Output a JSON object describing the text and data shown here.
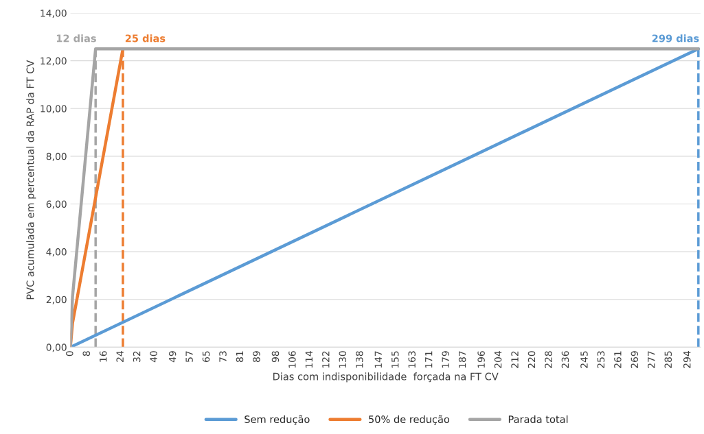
{
  "chart_data": {
    "type": "line",
    "xlabel": "Dias com indisponibilidade  forçada na FT CV",
    "ylabel": "PVC acumulada em percentual da RAP da FT CV",
    "series": [
      {
        "name": "Sem redução",
        "color": "#5b9bd5",
        "x": [
          0,
          299
        ],
        "values": [
          0,
          12.5
        ]
      },
      {
        "name": "50% de redução",
        "color": "#ed7d31",
        "x": [
          0,
          1,
          25
        ],
        "values": [
          0,
          1.0,
          12.5
        ]
      },
      {
        "name": "Parada total",
        "color": "#a5a5a5",
        "x": [
          0,
          1,
          12,
          299
        ],
        "values": [
          0,
          2.1,
          12.5,
          12.5
        ]
      }
    ],
    "xlim": [
      0,
      300
    ],
    "xticks": [
      0,
      8,
      16,
      24,
      32,
      40,
      49,
      57,
      65,
      73,
      81,
      89,
      98,
      106,
      114,
      122,
      130,
      138,
      147,
      155,
      163,
      171,
      179,
      187,
      196,
      204,
      212,
      220,
      228,
      236,
      245,
      253,
      261,
      269,
      277,
      285,
      294
    ],
    "ylim": [
      0,
      14
    ],
    "yticks": [
      {
        "value": 0,
        "label": "0,00"
      },
      {
        "value": 2,
        "label": "2,00"
      },
      {
        "value": 4,
        "label": "4,00"
      },
      {
        "value": 6,
        "label": "6,00"
      },
      {
        "value": 8,
        "label": "8,00"
      },
      {
        "value": 10,
        "label": "10,00"
      },
      {
        "value": 12,
        "label": "12,00"
      },
      {
        "value": 14,
        "label": "14,00"
      }
    ],
    "ref_lines": [
      {
        "axis": "x",
        "value": 12,
        "label": "12 dias",
        "color": "#a5a5a5",
        "line_style": "dashed"
      },
      {
        "axis": "x",
        "value": 25,
        "label": "25 dias",
        "color": "#ed7d31",
        "line_style": "dashed"
      },
      {
        "axis": "x",
        "value": 299,
        "label": "299 dias",
        "color": "#5b9bd5",
        "line_style": "dashed"
      }
    ],
    "grid": "y",
    "legend": "bottom",
    "line_style": "solid",
    "marker": "none"
  }
}
